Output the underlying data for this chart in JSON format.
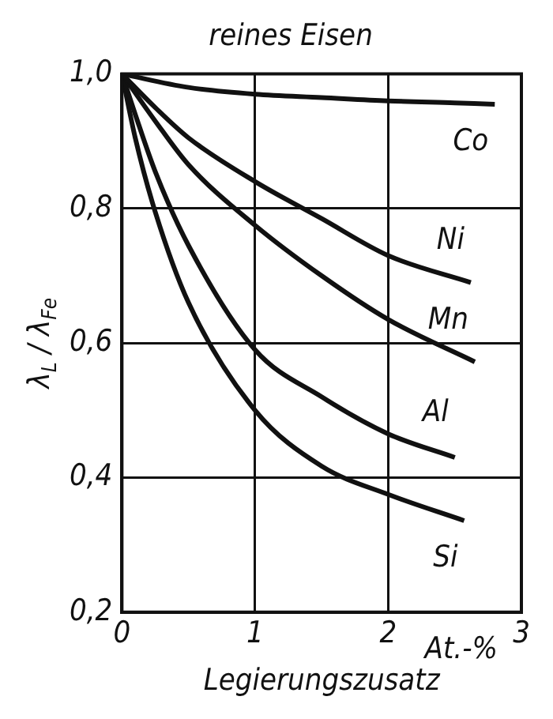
{
  "chart_data": {
    "type": "line",
    "title": "reines Eisen",
    "xlabel": "Legierungszusatz",
    "ylabel": "λ$_{L}$ / λ$_{Fe}$",
    "annotations": [
      "At.-%"
    ],
    "xlim": [
      0,
      3
    ],
    "xticks": [
      0,
      1,
      2,
      3
    ],
    "ylim": [
      0.2,
      1.0
    ],
    "yticks": [
      {
        "value": 0.2,
        "label": "0,2"
      },
      {
        "value": 0.4,
        "label": "0,4"
      },
      {
        "value": 0.6,
        "label": "0,6"
      },
      {
        "value": 0.8,
        "label": "0,8"
      },
      {
        "value": 1.0,
        "label": "1,0"
      }
    ],
    "grid": true,
    "legend": false,
    "marker": "none",
    "line_style": "solid",
    "series": [
      {
        "name": "Co",
        "color": "#111111",
        "x": [
          0,
          0.5,
          1,
          1.5,
          2,
          2.5,
          2.8
        ],
        "values": [
          1.0,
          0.98,
          0.97,
          0.965,
          0.96,
          0.957,
          0.955
        ]
      },
      {
        "name": "Ni",
        "color": "#111111",
        "x": [
          0,
          0.25,
          0.5,
          1,
          1.5,
          2,
          2.62
        ],
        "values": [
          1.0,
          0.95,
          0.905,
          0.84,
          0.785,
          0.73,
          0.69
        ]
      },
      {
        "name": "Mn",
        "color": "#111111",
        "x": [
          0,
          0.25,
          0.5,
          1,
          1.5,
          2,
          2.65
        ],
        "values": [
          1.0,
          0.93,
          0.865,
          0.775,
          0.7,
          0.635,
          0.572
        ]
      },
      {
        "name": "Al",
        "color": "#111111",
        "x": [
          0,
          0.1,
          0.25,
          0.5,
          1,
          1.5,
          2,
          2.5
        ],
        "values": [
          1.0,
          0.94,
          0.855,
          0.745,
          0.59,
          0.52,
          0.465,
          0.43
        ]
      },
      {
        "name": "Si",
        "color": "#111111",
        "x": [
          0,
          0.1,
          0.25,
          0.5,
          1,
          1.5,
          2,
          2.57
        ],
        "values": [
          1.0,
          0.905,
          0.795,
          0.66,
          0.5,
          0.417,
          0.375,
          0.336
        ]
      }
    ]
  }
}
